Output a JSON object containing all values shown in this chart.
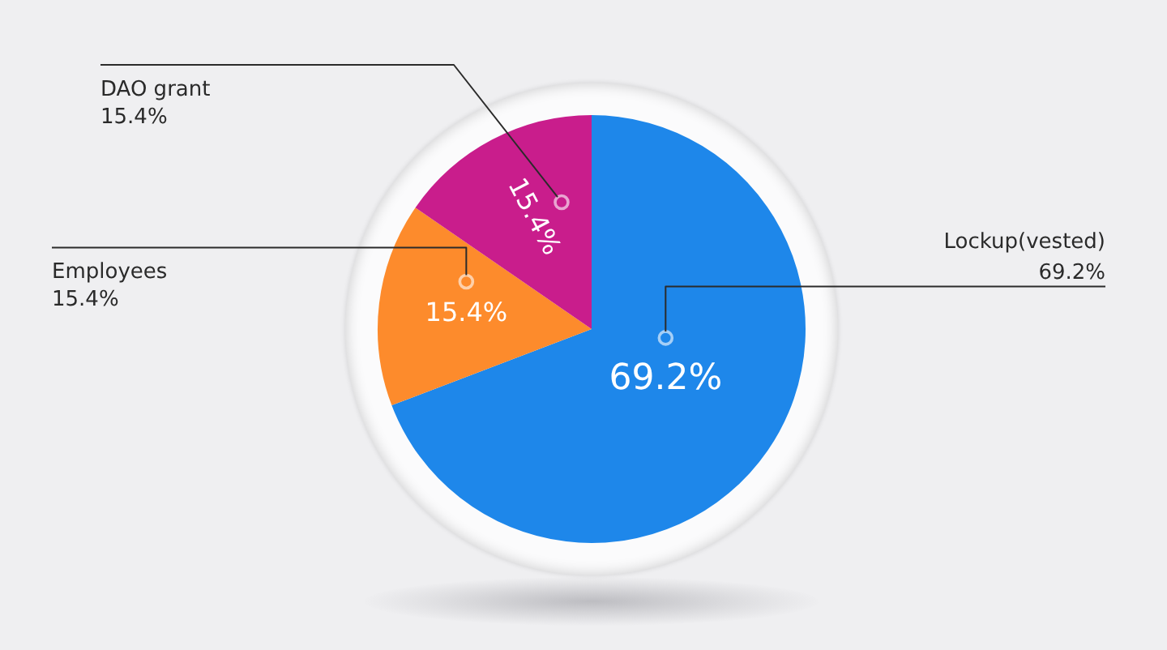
{
  "chart_data": {
    "type": "pie",
    "categories": [
      "Lockup(vested)",
      "Employees",
      "DAO grant"
    ],
    "values": [
      69.2,
      15.4,
      15.4
    ],
    "colors": [
      "#1e87ea",
      "#fd8b2c",
      "#c91d8c"
    ],
    "value_labels": [
      "69.2%",
      "15.4%",
      "15.4%"
    ]
  }
}
